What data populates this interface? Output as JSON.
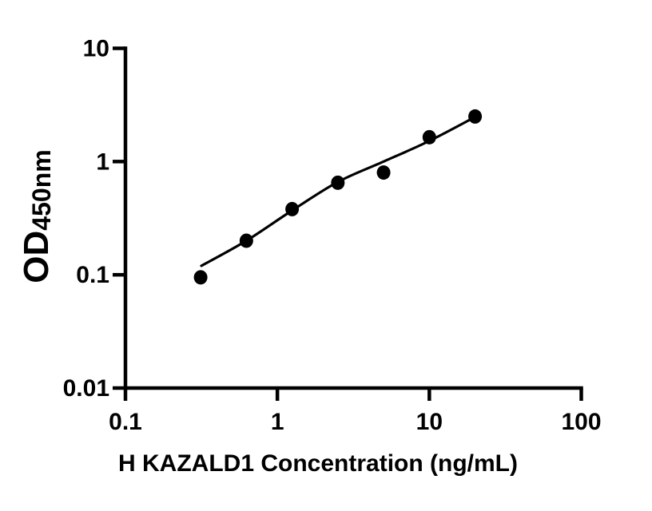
{
  "figure": {
    "background_color": "#ffffff",
    "foreground_color": "#000000",
    "description": "ELISA standard curve, log-log scatter plot with fitted line"
  },
  "chart_data": {
    "type": "scatter",
    "title": "",
    "xlabel": "H KAZALD1 Concentration (ng/mL)",
    "ylabel": "OD",
    "ylabel_subscript": "450nm",
    "x_scale": "log",
    "y_scale": "log",
    "xlim": [
      0.1,
      100
    ],
    "ylim": [
      0.01,
      10
    ],
    "x_ticks": [
      0.1,
      1,
      10,
      100
    ],
    "x_tick_labels": [
      "0.1",
      "1",
      "10",
      "100"
    ],
    "y_ticks": [
      10,
      1,
      0.1,
      0.01
    ],
    "y_tick_labels": [
      "10",
      "1",
      "0.1",
      "0.01"
    ],
    "grid": false,
    "legend": false,
    "series": [
      {
        "name": "standard-points",
        "marker": "filled-circle",
        "color": "#000000",
        "x": [
          0.3125,
          0.625,
          1.25,
          2.5,
          5,
          10,
          20
        ],
        "y": [
          0.095,
          0.2,
          0.38,
          0.65,
          0.8,
          1.64,
          2.5
        ]
      }
    ],
    "fit_line": {
      "name": "fitted-curve",
      "color": "#000000",
      "x": [
        0.316,
        0.625,
        1.25,
        2.5,
        5,
        10,
        20.6
      ],
      "y": [
        0.12,
        0.2,
        0.37,
        0.66,
        1.0,
        1.52,
        2.53
      ]
    }
  }
}
